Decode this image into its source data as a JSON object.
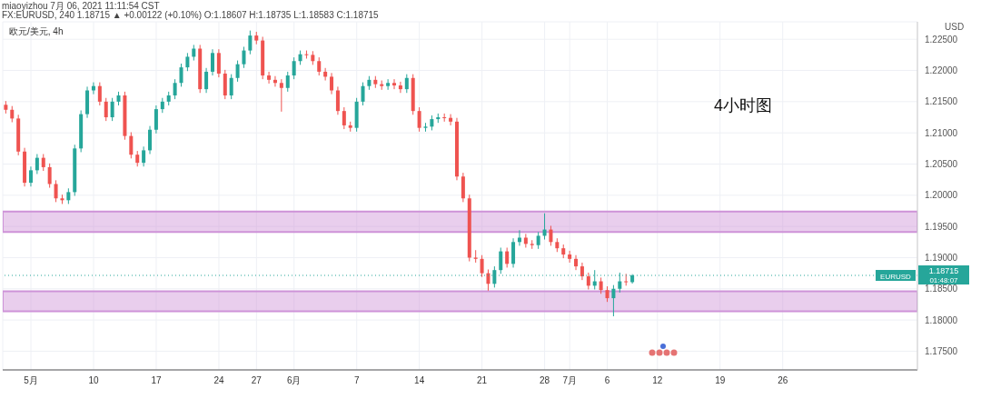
{
  "chart_data": {
    "type": "candlestick",
    "title": "4小时图",
    "ylabel": "USD",
    "annotations": [
      "miaoyizhou 7月 06, 2021 11:11:54 CST",
      "FX:EURUSD, 240 1.18715 ▲ +0.00122 (+0.10%) O:1.18607 H:1.18735 L:1.18583 C:1.18715",
      "欧元/美元, 4h",
      "EURUSD",
      "01:48:07"
    ],
    "categories": [
      null,
      null,
      null,
      null,
      "5月",
      null,
      null,
      null,
      null,
      null,
      null,
      null,
      null,
      null,
      "10",
      null,
      null,
      null,
      null,
      null,
      null,
      null,
      null,
      null,
      "17",
      null,
      null,
      null,
      null,
      null,
      null,
      null,
      null,
      null,
      "24",
      null,
      null,
      null,
      null,
      null,
      "27",
      null,
      null,
      null,
      null,
      null,
      "6月",
      null,
      null,
      null,
      null,
      null,
      null,
      null,
      null,
      null,
      "7",
      null,
      null,
      null,
      null,
      null,
      null,
      null,
      null,
      null,
      "14",
      null,
      null,
      null,
      null,
      null,
      null,
      null,
      null,
      null,
      "21",
      null,
      null,
      null,
      null,
      null,
      null,
      null,
      null,
      null,
      "28",
      null,
      null,
      null,
      "7月",
      null,
      null,
      null,
      null,
      null,
      "6",
      null,
      null,
      null,
      null,
      null,
      null,
      null,
      "12",
      null,
      null,
      null,
      null,
      null,
      null,
      null,
      null,
      null,
      "19",
      null,
      null,
      null,
      null,
      null,
      null,
      null,
      null,
      null,
      "26",
      null,
      null,
      null,
      null,
      null,
      null,
      null,
      null,
      null,
      null,
      null,
      null,
      null,
      null,
      null,
      null,
      null,
      null,
      null,
      null,
      null
    ],
    "ohlc": [
      [
        1.2145,
        1.2151,
        1.2131,
        1.2137
      ],
      [
        1.2137,
        1.2143,
        1.2117,
        1.2123
      ],
      [
        1.2123,
        1.2129,
        1.2064,
        1.207
      ],
      [
        1.207,
        1.2076,
        1.2014,
        1.202
      ],
      [
        1.202,
        1.2046,
        1.2014,
        1.204
      ],
      [
        1.204,
        1.2066,
        1.2034,
        1.206
      ],
      [
        1.206,
        1.2066,
        1.2039,
        1.2045
      ],
      [
        1.2045,
        1.2051,
        1.2012,
        1.2018
      ],
      [
        1.2018,
        1.2024,
        1.1989,
        1.1995
      ],
      [
        1.1995,
        1.2001,
        1.1986,
        1.1992
      ],
      [
        1.1992,
        1.2011,
        1.1986,
        1.2005
      ],
      [
        1.2005,
        1.2081,
        1.1999,
        1.2075
      ],
      [
        1.2075,
        1.2136,
        1.2069,
        1.213
      ],
      [
        1.213,
        1.2174,
        1.2124,
        1.2168
      ],
      [
        1.2168,
        1.2181,
        1.2162,
        1.2175
      ],
      [
        1.2175,
        1.2181,
        1.2144,
        1.215
      ],
      [
        1.215,
        1.2156,
        1.2119,
        1.2125
      ],
      [
        1.2125,
        1.2156,
        1.2119,
        1.215
      ],
      [
        1.215,
        1.2166,
        1.2144,
        1.216
      ],
      [
        1.216,
        1.2166,
        1.2089,
        1.2095
      ],
      [
        1.2095,
        1.2101,
        1.2059,
        1.2065
      ],
      [
        1.2065,
        1.2071,
        1.2046,
        1.2052
      ],
      [
        1.2052,
        1.2078,
        1.2046,
        1.2072
      ],
      [
        1.2072,
        1.2111,
        1.2066,
        1.2105
      ],
      [
        1.2105,
        1.2144,
        1.2099,
        1.2138
      ],
      [
        1.2138,
        1.2156,
        1.2132,
        1.215
      ],
      [
        1.215,
        1.2166,
        1.2144,
        1.216
      ],
      [
        1.216,
        1.2186,
        1.2154,
        1.218
      ],
      [
        1.218,
        1.2211,
        1.2174,
        1.2205
      ],
      [
        1.2205,
        1.2228,
        1.2199,
        1.2222
      ],
      [
        1.2222,
        1.2241,
        1.2216,
        1.2235
      ],
      [
        1.2235,
        1.2241,
        1.2164,
        1.217
      ],
      [
        1.217,
        1.2204,
        1.2164,
        1.2198
      ],
      [
        1.2198,
        1.2234,
        1.2192,
        1.2228
      ],
      [
        1.2228,
        1.2234,
        1.2189,
        1.2195
      ],
      [
        1.2195,
        1.2201,
        1.2154,
        1.216
      ],
      [
        1.216,
        1.2194,
        1.2154,
        1.2188
      ],
      [
        1.2188,
        1.2216,
        1.2182,
        1.221
      ],
      [
        1.221,
        1.2238,
        1.2204,
        1.2232
      ],
      [
        1.2232,
        1.2264,
        1.2226,
        1.2256
      ],
      [
        1.2256,
        1.2262,
        1.2242,
        1.2248
      ],
      [
        1.2248,
        1.2254,
        1.2186,
        1.2192
      ],
      [
        1.2192,
        1.2198,
        1.2179,
        1.2185
      ],
      [
        1.2185,
        1.2191,
        1.2174,
        1.218
      ],
      [
        1.218,
        1.2186,
        1.2134,
        1.2172
      ],
      [
        1.2172,
        1.2198,
        1.2166,
        1.2192
      ],
      [
        1.2192,
        1.2221,
        1.2186,
        1.2215
      ],
      [
        1.2215,
        1.2232,
        1.2209,
        1.2226
      ],
      [
        1.2226,
        1.2232,
        1.2219,
        1.2225
      ],
      [
        1.2225,
        1.2231,
        1.2209,
        1.2215
      ],
      [
        1.2215,
        1.2221,
        1.2192,
        1.2198
      ],
      [
        1.2198,
        1.2204,
        1.2184,
        1.219
      ],
      [
        1.219,
        1.2196,
        1.2162,
        1.2168
      ],
      [
        1.2168,
        1.2174,
        1.2129,
        1.2135
      ],
      [
        1.2135,
        1.2141,
        1.2106,
        1.2112
      ],
      [
        1.2112,
        1.2118,
        1.2102,
        1.2108
      ],
      [
        1.2108,
        1.2156,
        1.2102,
        1.215
      ],
      [
        1.215,
        1.2181,
        1.2144,
        1.2175
      ],
      [
        1.2175,
        1.2191,
        1.2169,
        1.2185
      ],
      [
        1.2185,
        1.2191,
        1.2172,
        1.2178
      ],
      [
        1.2178,
        1.2184,
        1.2169,
        1.2175
      ],
      [
        1.2175,
        1.2186,
        1.2169,
        1.218
      ],
      [
        1.218,
        1.2186,
        1.217,
        1.2176
      ],
      [
        1.2176,
        1.2182,
        1.2164,
        1.217
      ],
      [
        1.217,
        1.2194,
        1.2164,
        1.2188
      ],
      [
        1.2188,
        1.2194,
        1.2129,
        1.2135
      ],
      [
        1.2135,
        1.2141,
        1.2102,
        1.2108
      ],
      [
        1.2108,
        1.2116,
        1.2102,
        1.211
      ],
      [
        1.211,
        1.2128,
        1.2104,
        1.2122
      ],
      [
        1.2122,
        1.2131,
        1.2116,
        1.2125
      ],
      [
        1.2125,
        1.2131,
        1.2118,
        1.2124
      ],
      [
        1.2124,
        1.213,
        1.2112,
        1.2118
      ],
      [
        1.2118,
        1.2124,
        1.2024,
        1.203
      ],
      [
        1.203,
        1.2036,
        1.1989,
        1.1995
      ],
      [
        1.1995,
        1.2001,
        1.1894,
        1.19
      ],
      [
        1.19,
        1.1912,
        1.1892,
        1.1898
      ],
      [
        1.1898,
        1.1904,
        1.1869,
        1.1875
      ],
      [
        1.1875,
        1.1881,
        1.1847,
        1.1858
      ],
      [
        1.1858,
        1.1886,
        1.1852,
        1.188
      ],
      [
        1.188,
        1.1916,
        1.1874,
        1.191
      ],
      [
        1.191,
        1.1916,
        1.1884,
        1.189
      ],
      [
        1.189,
        1.1931,
        1.1884,
        1.1925
      ],
      [
        1.1925,
        1.1944,
        1.1919,
        1.1932
      ],
      [
        1.1932,
        1.1938,
        1.1916,
        1.1922
      ],
      [
        1.1922,
        1.1928,
        1.1914,
        1.192
      ],
      [
        1.192,
        1.1941,
        1.1914,
        1.1935
      ],
      [
        1.1935,
        1.1971,
        1.1929,
        1.1945
      ],
      [
        1.1945,
        1.1951,
        1.1919,
        1.1925
      ],
      [
        1.1925,
        1.1931,
        1.1909,
        1.1915
      ],
      [
        1.1915,
        1.1921,
        1.1899,
        1.1905
      ],
      [
        1.1905,
        1.1911,
        1.1892,
        1.1898
      ],
      [
        1.1898,
        1.1904,
        1.188,
        1.1886
      ],
      [
        1.1886,
        1.1892,
        1.1864,
        1.187
      ],
      [
        1.187,
        1.1876,
        1.1849,
        1.1855
      ],
      [
        1.1855,
        1.188,
        1.1849,
        1.1862
      ],
      [
        1.1862,
        1.1868,
        1.1842,
        1.1848
      ],
      [
        1.1848,
        1.1854,
        1.1829,
        1.1835
      ],
      [
        1.1835,
        1.1856,
        1.1806,
        1.185
      ],
      [
        1.185,
        1.1876,
        1.1844,
        1.1862
      ],
      [
        1.1862,
        1.1874,
        1.1855,
        1.1861
      ],
      [
        1.18607,
        1.18735,
        1.18583,
        1.18715
      ],
      null,
      null,
      null,
      null,
      null,
      null,
      null,
      null,
      null,
      null,
      null,
      null,
      null,
      null,
      null,
      null,
      null,
      null,
      null,
      null,
      null,
      null,
      null,
      null,
      null,
      null,
      null,
      null,
      null,
      null,
      null,
      null,
      null,
      null,
      null,
      null,
      null,
      null,
      null,
      null,
      null,
      null,
      null,
      null,
      null
    ],
    "colors": [
      "#ef5350",
      "#ef5350",
      "#ef5350",
      "#ef5350",
      "#26a69a",
      "#26a69a",
      "#ef5350",
      "#ef5350",
      "#ef5350",
      "#ef5350",
      "#26a69a",
      "#26a69a",
      "#26a69a",
      "#26a69a",
      "#26a69a",
      "#ef5350",
      "#ef5350",
      "#26a69a",
      "#26a69a",
      "#ef5350",
      "#ef5350",
      "#ef5350",
      "#26a69a",
      "#26a69a",
      "#26a69a",
      "#26a69a",
      "#26a69a",
      "#26a69a",
      "#26a69a",
      "#26a69a",
      "#26a69a",
      "#ef5350",
      "#26a69a",
      "#26a69a",
      "#ef5350",
      "#ef5350",
      "#26a69a",
      "#26a69a",
      "#26a69a",
      "#26a69a",
      "#ef5350",
      "#ef5350",
      "#ef5350",
      "#ef5350",
      "#ef5350",
      "#26a69a",
      "#26a69a",
      "#26a69a",
      "#ef5350",
      "#ef5350",
      "#ef5350",
      "#ef5350",
      "#ef5350",
      "#ef5350",
      "#ef5350",
      "#ef5350",
      "#26a69a",
      "#26a69a",
      "#26a69a",
      "#ef5350",
      "#ef5350",
      "#26a69a",
      "#ef5350",
      "#ef5350",
      "#26a69a",
      "#ef5350",
      "#ef5350",
      "#26a69a",
      "#26a69a",
      "#26a69a",
      "#ef5350",
      "#ef5350",
      "#ef5350",
      "#ef5350",
      "#ef5350",
      "#ef5350",
      "#ef5350",
      "#ef5350",
      "#26a69a",
      "#26a69a",
      "#ef5350",
      "#26a69a",
      "#26a69a",
      "#ef5350",
      "#ef5350",
      "#26a69a",
      "#26a69a",
      "#ef5350",
      "#ef5350",
      "#ef5350",
      "#ef5350",
      "#ef5350",
      "#ef5350",
      "#ef5350",
      "#26a69a",
      "#ef5350",
      "#ef5350",
      "#26a69a",
      "#26a69a",
      "#ef5350",
      "#26a69a",
      null,
      null,
      null,
      null,
      null,
      null,
      null,
      null,
      null,
      null,
      null,
      null,
      null,
      null,
      null,
      null,
      null,
      null,
      null,
      null,
      null,
      null,
      null,
      null,
      null,
      null,
      null,
      null,
      null,
      null,
      null,
      null,
      null,
      null,
      null,
      null,
      null,
      null,
      null,
      null,
      null,
      null,
      null,
      null,
      null
    ],
    "ylim": [
      1.172,
      1.2278
    ],
    "yticks": [
      {
        "value": 1.175,
        "label": "1.17500"
      },
      {
        "value": 1.18,
        "label": "1.18000"
      },
      {
        "value": 1.185,
        "label": "1.18500"
      },
      {
        "value": 1.19,
        "label": "1.19000"
      },
      {
        "value": 1.195,
        "label": "1.19500"
      },
      {
        "value": 1.2,
        "label": "1.20000"
      },
      {
        "value": 1.205,
        "label": "1.20500"
      },
      {
        "value": 1.21,
        "label": "1.21000"
      },
      {
        "value": 1.215,
        "label": "1.21500"
      },
      {
        "value": 1.22,
        "label": "1.22000"
      },
      {
        "value": 1.225,
        "label": "1.22500"
      }
    ],
    "bands": [
      {
        "axis": "y",
        "from": 1.1941,
        "to": 1.1974,
        "color": "#ce93d8"
      },
      {
        "axis": "y",
        "from": 1.1814,
        "to": 1.1846,
        "color": "#ce93d8"
      }
    ],
    "ref_lines": [
      {
        "axis": "y",
        "value": 1.18715,
        "label": "1.18715",
        "color": "#26a69a",
        "line_style": "dotted"
      }
    ],
    "grid": true
  }
}
